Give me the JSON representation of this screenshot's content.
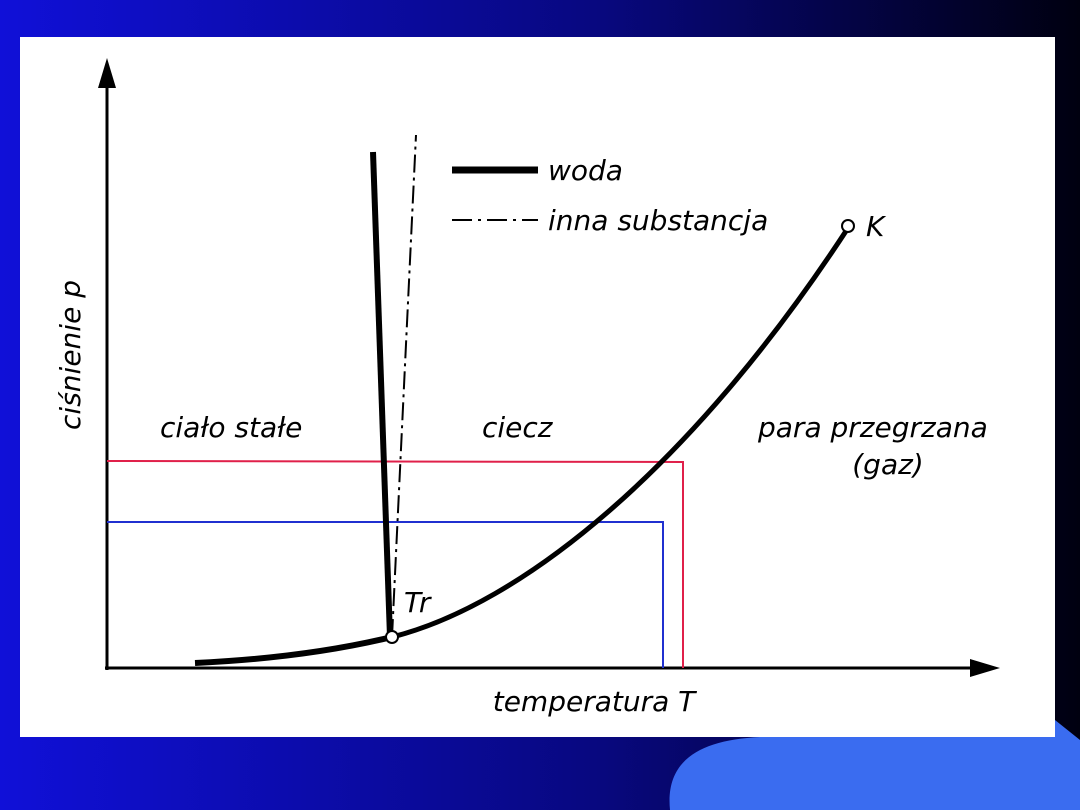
{
  "legend": {
    "items": [
      {
        "label": "woda"
      },
      {
        "label": "inna substancja"
      }
    ]
  },
  "axes": {
    "y_label": "ciśnienie p",
    "x_label": "temperatura T"
  },
  "regions": [
    {
      "label": "ciało stałe"
    },
    {
      "label": "ciecz"
    },
    {
      "label": "para przegrzana",
      "sublabel": "(gaz)"
    }
  ],
  "points": [
    {
      "label": "K"
    },
    {
      "label": "Tr"
    }
  ]
}
